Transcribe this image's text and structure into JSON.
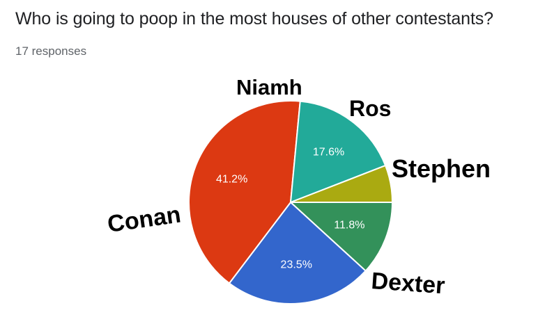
{
  "header": {
    "question": "Who is going to poop in the most houses of other contestants?",
    "responses": "17 responses"
  },
  "chart_data": {
    "type": "pie",
    "total_responses": 17,
    "slices": [
      {
        "name": "Stephen",
        "value": 11.8,
        "label": "11.8%",
        "color": "#33915a"
      },
      {
        "name": "Dexter",
        "value": 23.5,
        "label": "23.5%",
        "color": "#3366cc"
      },
      {
        "name": "Conan",
        "value": 41.2,
        "label": "41.2%",
        "color": "#dc3912"
      },
      {
        "name": "Niamh",
        "value": 17.6,
        "label": "17.6%",
        "color": "#22aa99"
      },
      {
        "name": "Ros",
        "value": 5.9,
        "label": "",
        "color": "#aaaa11"
      }
    ],
    "start": "3 o'clock",
    "direction": "clockwise"
  }
}
